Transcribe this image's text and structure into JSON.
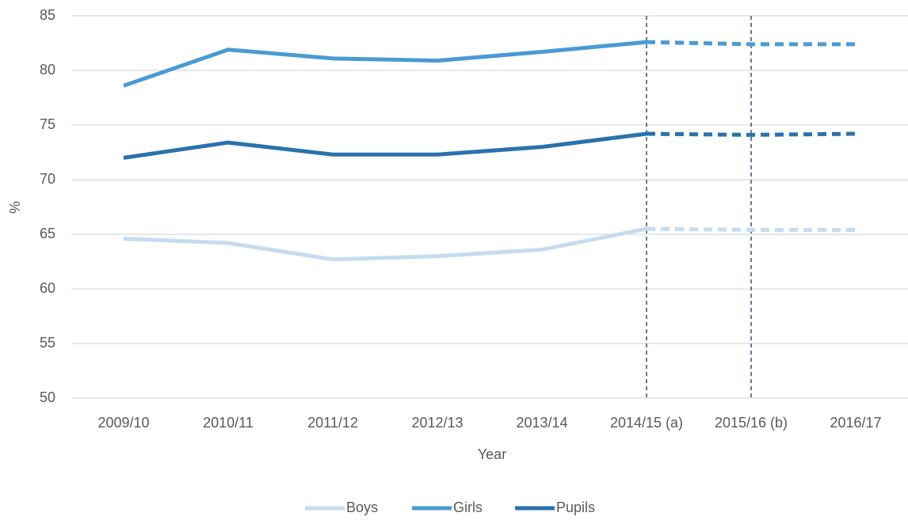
{
  "chart_data": {
    "type": "line",
    "x_label": "Year",
    "y_label": "%",
    "categories": [
      "2009/10",
      "2010/11",
      "2011/12",
      "2012/13",
      "2013/14",
      "2014/15 (a)",
      "2015/16 (b)",
      "2016/17"
    ],
    "series": [
      {
        "name": "Boys",
        "color": "#c5dcf0",
        "values": [
          64.6,
          64.2,
          62.7,
          63.0,
          63.6,
          65.5,
          65.4,
          65.4
        ]
      },
      {
        "name": "Girls",
        "color": "#4a9ad4",
        "values": [
          78.6,
          81.9,
          81.1,
          80.9,
          81.7,
          82.6,
          82.4,
          82.4
        ]
      },
      {
        "name": "Pupils",
        "color": "#2a72ad",
        "values": [
          72.0,
          73.4,
          72.3,
          72.3,
          73.0,
          74.2,
          74.1,
          74.2
        ]
      }
    ],
    "dashed_from": "2014/15 (a)",
    "vlines_at": [
      "2014/15 (a)",
      "2015/16 (b)"
    ],
    "vline_color": "#2f5080",
    "ylim": [
      50,
      85
    ],
    "yticks": [
      50,
      55,
      60,
      65,
      70,
      75,
      80,
      85
    ],
    "grid": true,
    "legend": "bottom"
  }
}
